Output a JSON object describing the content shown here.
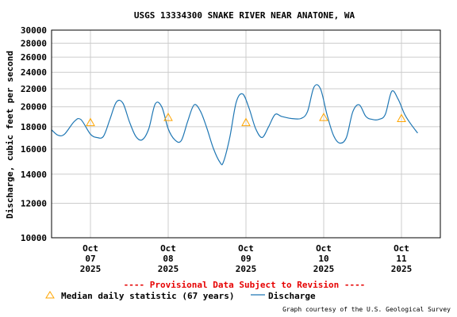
{
  "chart_data": {
    "type": "line",
    "title": "USGS 13334300 SNAKE RIVER NEAR ANATONE, WA",
    "ylabel": "Discharge, cubic feet per second",
    "xlabel": "",
    "y_scale": "log",
    "ylim": [
      10000,
      30000
    ],
    "y_ticks": [
      10000,
      12000,
      14000,
      16000,
      18000,
      20000,
      22000,
      24000,
      26000,
      28000,
      30000
    ],
    "y_tick_labels": [
      "10000",
      "12000",
      "14000",
      "16000",
      "18000",
      "20000",
      "22000",
      "24000",
      "26000",
      "28000",
      "30000"
    ],
    "xlim": [
      "2025-10-06T12:00",
      "2025-10-11T12:00"
    ],
    "x_ticks": [
      {
        "x": "2025-10-07T00:00",
        "label": [
          "Oct",
          "07",
          "2025"
        ]
      },
      {
        "x": "2025-10-08T00:00",
        "label": [
          "Oct",
          "08",
          "2025"
        ]
      },
      {
        "x": "2025-10-09T00:00",
        "label": [
          "Oct",
          "09",
          "2025"
        ]
      },
      {
        "x": "2025-10-10T00:00",
        "label": [
          "Oct",
          "10",
          "2025"
        ]
      },
      {
        "x": "2025-10-11T00:00",
        "label": [
          "Oct",
          "11",
          "2025"
        ]
      }
    ],
    "grid": true,
    "series": [
      {
        "name": "Discharge",
        "color": "#1f77b4",
        "points": [
          [
            "2025-10-06T12:00",
            17700
          ],
          [
            "2025-10-06T14:00",
            17200
          ],
          [
            "2025-10-06T16:00",
            17300
          ],
          [
            "2025-10-06T19:00",
            18500
          ],
          [
            "2025-10-06T21:00",
            18700
          ],
          [
            "2025-10-07T00:00",
            17300
          ],
          [
            "2025-10-07T02:00",
            17000
          ],
          [
            "2025-10-07T04:00",
            17100
          ],
          [
            "2025-10-07T06:00",
            18700
          ],
          [
            "2025-10-07T08:00",
            20500
          ],
          [
            "2025-10-07T10:00",
            20400
          ],
          [
            "2025-10-07T12:00",
            18500
          ],
          [
            "2025-10-07T14:00",
            17100
          ],
          [
            "2025-10-07T16:00",
            16800
          ],
          [
            "2025-10-07T18:00",
            17800
          ],
          [
            "2025-10-07T20:00",
            20300
          ],
          [
            "2025-10-07T22:00",
            20000
          ],
          [
            "2025-10-08T00:00",
            17800
          ],
          [
            "2025-10-08T02:00",
            16800
          ],
          [
            "2025-10-08T04:00",
            16700
          ],
          [
            "2025-10-08T06:00",
            18500
          ],
          [
            "2025-10-08T08:00",
            20200
          ],
          [
            "2025-10-08T10:00",
            19500
          ],
          [
            "2025-10-08T12:00",
            17800
          ],
          [
            "2025-10-08T14:00",
            16000
          ],
          [
            "2025-10-08T16:00",
            14900
          ],
          [
            "2025-10-08T17:00",
            14900
          ],
          [
            "2025-10-08T19:00",
            17000
          ],
          [
            "2025-10-08T21:00",
            20500
          ],
          [
            "2025-10-08T23:00",
            21400
          ],
          [
            "2025-10-09T01:00",
            19800
          ],
          [
            "2025-10-09T03:00",
            17800
          ],
          [
            "2025-10-09T05:00",
            17000
          ],
          [
            "2025-10-09T07:00",
            18000
          ],
          [
            "2025-10-09T09:00",
            19200
          ],
          [
            "2025-10-09T11:00",
            19000
          ],
          [
            "2025-10-09T14:00",
            18800
          ],
          [
            "2025-10-09T17:00",
            18800
          ],
          [
            "2025-10-09T19:00",
            19500
          ],
          [
            "2025-10-09T21:00",
            22200
          ],
          [
            "2025-10-09T23:00",
            22000
          ],
          [
            "2025-10-10T01:00",
            19200
          ],
          [
            "2025-10-10T03:00",
            17200
          ],
          [
            "2025-10-10T05:00",
            16500
          ],
          [
            "2025-10-10T07:00",
            17000
          ],
          [
            "2025-10-10T09:00",
            19500
          ],
          [
            "2025-10-10T11:00",
            20200
          ],
          [
            "2025-10-10T13:00",
            19000
          ],
          [
            "2025-10-10T15:00",
            18700
          ],
          [
            "2025-10-10T17:00",
            18700
          ],
          [
            "2025-10-10T19:00",
            19200
          ],
          [
            "2025-10-10T21:00",
            21700
          ],
          [
            "2025-10-10T23:00",
            20800
          ],
          [
            "2025-10-11T01:00",
            19200
          ],
          [
            "2025-10-11T03:00",
            18200
          ],
          [
            "2025-10-11T05:00",
            17400
          ]
        ]
      },
      {
        "name": "Median daily statistic (67 years)",
        "color": "#ffa500",
        "marker": "triangle",
        "points": [
          [
            "2025-10-07T00:00",
            18400
          ],
          [
            "2025-10-08T00:00",
            18900
          ],
          [
            "2025-10-09T00:00",
            18400
          ],
          [
            "2025-10-10T00:00",
            18900
          ],
          [
            "2025-10-11T00:00",
            18800
          ]
        ]
      }
    ],
    "legend": {
      "placement": "bottom",
      "items": [
        {
          "label": "Median daily statistic (67 years)",
          "marker": "triangle",
          "color": "#ffa500"
        },
        {
          "label": "Discharge",
          "marker": "line",
          "color": "#1f77b4"
        }
      ]
    },
    "notice": "---- Provisional Data Subject to Revision ----",
    "notice_color": "#e60000",
    "credit": "Graph courtesy of the U.S. Geological Survey"
  }
}
